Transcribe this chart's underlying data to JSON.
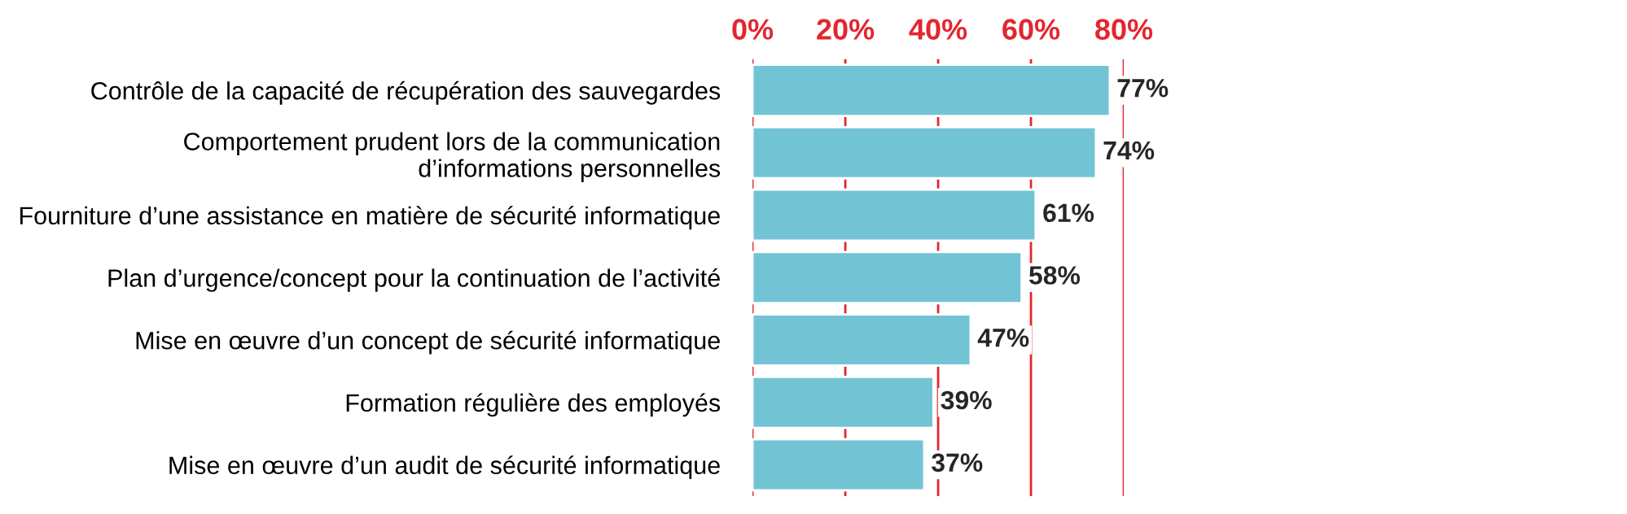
{
  "chart_data": {
    "type": "bar",
    "orientation": "horizontal",
    "categories": [
      "Contrôle de la capacité de récupération des sauvegardes",
      "Comportement prudent lors de la communication\nd’informations personnelles",
      "Fourniture d’une assistance en matière de sécurité informatique",
      "Plan d’urgence/concept pour la continuation de l’activité",
      "Mise en œuvre d’un concept de sécurité informatique",
      "Formation régulière des employés",
      "Mise en œuvre d’un audit de sécurité informatique"
    ],
    "values": [
      77,
      74,
      61,
      58,
      47,
      39,
      37
    ],
    "value_labels": [
      "77%",
      "74%",
      "61%",
      "58%",
      "47%",
      "39%",
      "37%"
    ],
    "color": "#72c4d5",
    "xlim": [
      0,
      80
    ],
    "xticks": [
      {
        "value": 0,
        "label": "0%"
      },
      {
        "value": 20,
        "label": "20%"
      },
      {
        "value": 40,
        "label": "40%"
      },
      {
        "value": 60,
        "label": "60%"
      },
      {
        "value": 80,
        "label": "80%"
      }
    ],
    "grid": "x"
  }
}
